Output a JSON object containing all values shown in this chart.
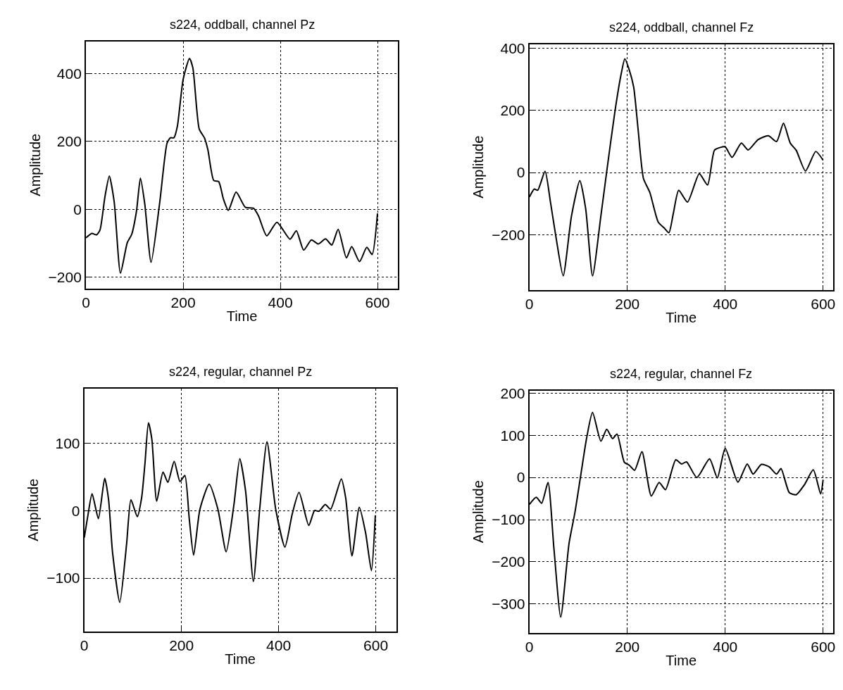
{
  "chart_data": [
    {
      "type": "line",
      "title": "s224, oddball, channel Pz",
      "xlabel": "Time",
      "ylabel": "Amplitude",
      "color": "#000000",
      "grid": true,
      "x": [
        0,
        12,
        22,
        29,
        39,
        48,
        58,
        71,
        85,
        94,
        104,
        112,
        121,
        134,
        152,
        167,
        174,
        181,
        188,
        200,
        213,
        220,
        233,
        244,
        251,
        263,
        273,
        283,
        293,
        309,
        328,
        345,
        355,
        372,
        393,
        420,
        433,
        448,
        464,
        478,
        493,
        506,
        519,
        536,
        547,
        563,
        578,
        589,
        600
      ],
      "values": [
        -84,
        -71,
        -75,
        -60,
        37,
        98,
        23,
        -188,
        -98,
        -74,
        -5,
        92,
        16,
        -156,
        23,
        196,
        211,
        211,
        244,
        383,
        445,
        417,
        237,
        210,
        175,
        85,
        82,
        30,
        -3,
        51,
        6,
        3,
        -19,
        -78,
        -38,
        -88,
        -63,
        -120,
        -90,
        -102,
        -87,
        -105,
        -59,
        -143,
        -110,
        -154,
        -112,
        -133,
        -12
      ],
      "xlim": [
        0,
        642
      ],
      "ylim": [
        -233,
        495
      ],
      "xticks": [
        0,
        200,
        400,
        600
      ],
      "yticks": [
        -200,
        0,
        200,
        400
      ]
    },
    {
      "type": "line",
      "title": "s224, oddball, channel Fz",
      "xlabel": "Time",
      "ylabel": "Amplitude",
      "color": "#000000",
      "grid": true,
      "x": [
        0,
        10,
        17,
        32,
        43,
        55,
        69,
        86,
        103,
        115,
        129,
        146,
        158,
        175,
        187,
        195,
        203,
        213,
        222,
        233,
        246,
        263,
        275,
        285,
        294,
        305,
        323,
        347,
        364,
        378,
        390,
        400,
        414,
        433,
        447,
        467,
        488,
        505,
        519,
        533,
        545,
        564,
        585,
        600
      ],
      "values": [
        -79,
        -53,
        -57,
        4,
        -95,
        -215,
        -333,
        -140,
        -26,
        -117,
        -333,
        -140,
        4,
        200,
        314,
        367,
        336,
        276,
        140,
        -19,
        -64,
        -159,
        -178,
        -194,
        -132,
        -57,
        -95,
        -4,
        -40,
        72,
        81,
        83,
        49,
        95,
        73,
        106,
        119,
        100,
        159,
        95,
        72,
        5,
        68,
        40
      ],
      "xlim": [
        0,
        620
      ],
      "ylim": [
        -378,
        414
      ],
      "xticks": [
        0,
        200,
        400,
        600
      ],
      "yticks": [
        -200,
        0,
        200,
        400
      ]
    },
    {
      "type": "line",
      "title": "s224, regular, channel Pz",
      "xlabel": "Time",
      "ylabel": "Amplitude",
      "color": "#000000",
      "grid": true,
      "x": [
        0,
        7,
        16,
        29,
        42,
        50,
        58,
        73,
        87,
        96,
        109,
        118,
        125,
        132,
        139,
        149,
        162,
        172,
        185,
        197,
        207,
        216,
        225,
        238,
        257,
        275,
        292,
        308,
        320,
        332,
        348,
        361,
        376,
        394,
        413,
        428,
        442,
        462,
        474,
        483,
        496,
        507,
        529,
        538,
        551,
        566,
        579,
        591,
        599
      ],
      "values": [
        -40,
        -9,
        25,
        -12,
        48,
        16,
        -61,
        -136,
        -50,
        16,
        -9,
        19,
        71,
        130,
        106,
        14,
        57,
        42,
        73,
        43,
        52,
        -12,
        -66,
        2,
        39,
        2,
        -61,
        9,
        77,
        29,
        -105,
        2,
        102,
        2,
        -54,
        -5,
        27,
        -22,
        0,
        -1,
        9,
        2,
        47,
        19,
        -67,
        5,
        -33,
        -89,
        -7
      ],
      "xlim": [
        0,
        642
      ],
      "ylim": [
        -179,
        181
      ],
      "xticks": [
        0,
        200,
        400,
        600
      ],
      "yticks": [
        -100,
        0,
        100
      ]
    },
    {
      "type": "line",
      "title": "s224, regular, channel Fz",
      "xlabel": "Time",
      "ylabel": "Amplitude",
      "color": "#000000",
      "grid": true,
      "x": [
        0,
        14,
        25,
        38,
        50,
        64,
        81,
        93,
        105,
        117,
        129,
        146,
        158,
        170,
        179,
        194,
        204,
        215,
        230,
        249,
        265,
        278,
        299,
        311,
        321,
        342,
        368,
        384,
        400,
        426,
        445,
        457,
        474,
        490,
        505,
        514,
        531,
        545,
        562,
        580,
        595,
        600
      ],
      "values": [
        -64,
        -47,
        -61,
        -12,
        -167,
        -331,
        -156,
        -83,
        6,
        94,
        154,
        86,
        114,
        92,
        103,
        36,
        29,
        17,
        61,
        -44,
        -12,
        -29,
        42,
        32,
        37,
        0,
        44,
        -1,
        69,
        -11,
        32,
        8,
        31,
        25,
        8,
        21,
        -36,
        -41,
        -17,
        18,
        -39,
        -6
      ],
      "xlim": [
        0,
        620
      ],
      "ylim": [
        -368,
        206
      ],
      "xticks": [
        0,
        200,
        400,
        600
      ],
      "yticks": [
        -300,
        -200,
        -100,
        0,
        100,
        200
      ]
    }
  ]
}
